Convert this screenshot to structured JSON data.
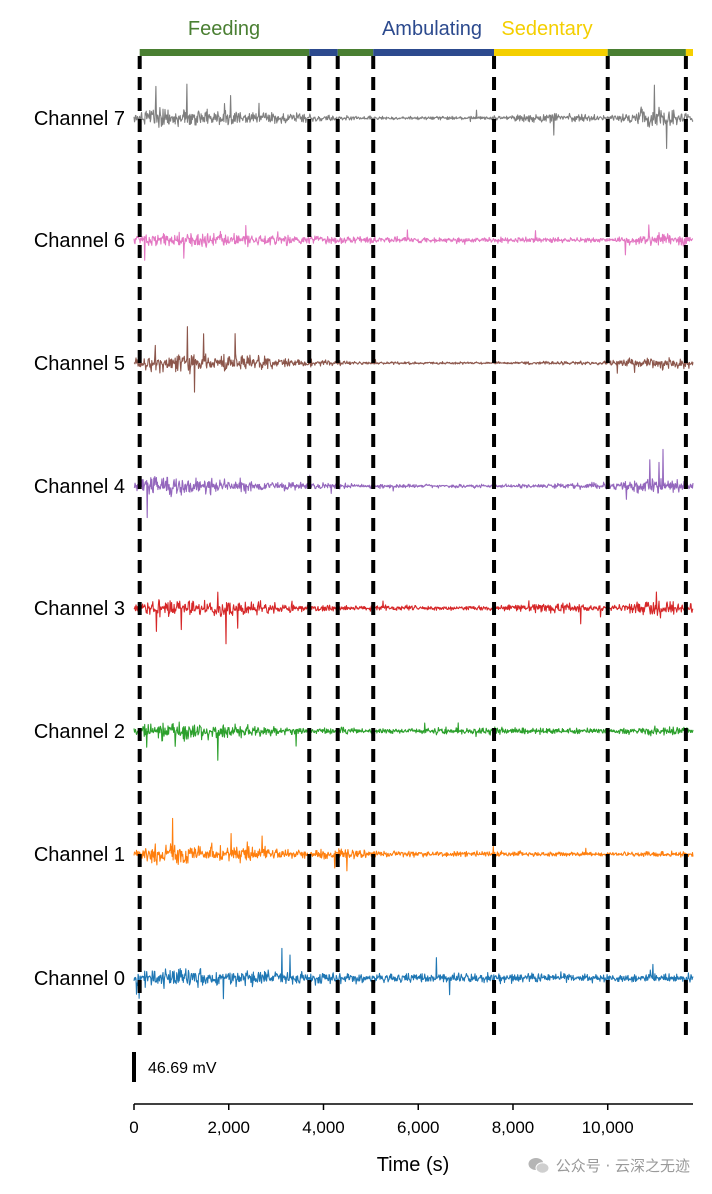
{
  "chart_data": {
    "type": "line",
    "xlabel": "Time (s)",
    "ylabel": "",
    "xlim": [
      0,
      11800
    ],
    "xticks": [
      0,
      2000,
      4000,
      6000,
      8000,
      10000
    ],
    "xtick_labels": [
      "0",
      "2,000",
      "4,000",
      "6,000",
      "8,000",
      "10,000"
    ],
    "scale_bar_label": "46.69 mV",
    "grid": false,
    "phase_labels": [
      {
        "label": "Feeding",
        "color": "#4a7f32"
      },
      {
        "label": "Ambulating",
        "color": "#2c4a8e"
      },
      {
        "label": "Sedentary",
        "color": "#f4cf00"
      }
    ],
    "phase_segments": [
      {
        "phase": "Feeding",
        "start": 120,
        "end": 3700
      },
      {
        "phase": "Ambulating",
        "start": 3700,
        "end": 4300
      },
      {
        "phase": "Feeding",
        "start": 4300,
        "end": 5050
      },
      {
        "phase": "Ambulating",
        "start": 5050,
        "end": 7600
      },
      {
        "phase": "Sedentary",
        "start": 7600,
        "end": 10000
      },
      {
        "phase": "Feeding",
        "start": 10000,
        "end": 11650
      },
      {
        "phase": "Sedentary",
        "start": 11650,
        "end": 11800
      }
    ],
    "boundaries": [
      120,
      3700,
      4300,
      5050,
      7600,
      10000,
      11650
    ],
    "series": [
      {
        "name": "Channel 7",
        "color": "#7f7f7f",
        "seed": 7,
        "activity": [
          [
            0,
            0.35
          ],
          [
            500,
            0.95
          ],
          [
            2000,
            0.7
          ],
          [
            3700,
            0.35
          ],
          [
            5050,
            0.15
          ],
          [
            7600,
            0.2
          ],
          [
            8800,
            0.45
          ],
          [
            10000,
            0.2
          ],
          [
            11000,
            0.95
          ],
          [
            11800,
            0.4
          ]
        ]
      },
      {
        "name": "Channel 6",
        "color": "#e377c2",
        "seed": 6,
        "activity": [
          [
            0,
            0.35
          ],
          [
            500,
            0.8
          ],
          [
            2000,
            0.6
          ],
          [
            3700,
            0.4
          ],
          [
            5050,
            0.3
          ],
          [
            7600,
            0.25
          ],
          [
            10000,
            0.2
          ],
          [
            11000,
            0.6
          ],
          [
            11800,
            0.4
          ]
        ]
      },
      {
        "name": "Channel 5",
        "color": "#8c564b",
        "seed": 5,
        "activity": [
          [
            0,
            0.4
          ],
          [
            500,
            0.95
          ],
          [
            2000,
            0.75
          ],
          [
            3700,
            0.35
          ],
          [
            5050,
            0.12
          ],
          [
            7600,
            0.1
          ],
          [
            10000,
            0.2
          ],
          [
            11000,
            0.6
          ],
          [
            11800,
            0.4
          ]
        ]
      },
      {
        "name": "Channel 4",
        "color": "#9467bd",
        "seed": 4,
        "activity": [
          [
            0,
            0.4
          ],
          [
            500,
            1.0
          ],
          [
            2000,
            0.6
          ],
          [
            3700,
            0.3
          ],
          [
            5050,
            0.2
          ],
          [
            7600,
            0.15
          ],
          [
            10000,
            0.3
          ],
          [
            11000,
            0.85
          ],
          [
            11800,
            0.4
          ]
        ]
      },
      {
        "name": "Channel 3",
        "color": "#d62728",
        "seed": 3,
        "activity": [
          [
            0,
            0.35
          ],
          [
            500,
            0.8
          ],
          [
            2000,
            0.8
          ],
          [
            3700,
            0.35
          ],
          [
            5050,
            0.25
          ],
          [
            7600,
            0.2
          ],
          [
            8800,
            0.55
          ],
          [
            10000,
            0.25
          ],
          [
            11000,
            0.8
          ],
          [
            11800,
            0.5
          ]
        ]
      },
      {
        "name": "Channel 2",
        "color": "#2ca02c",
        "seed": 2,
        "activity": [
          [
            0,
            0.3
          ],
          [
            500,
            0.85
          ],
          [
            2000,
            0.65
          ],
          [
            3700,
            0.25
          ],
          [
            4300,
            0.35
          ],
          [
            5050,
            0.2
          ],
          [
            7600,
            0.35
          ],
          [
            10000,
            0.2
          ],
          [
            11000,
            0.45
          ],
          [
            11800,
            0.3
          ]
        ]
      },
      {
        "name": "Channel 1",
        "color": "#ff7f0e",
        "seed": 1,
        "activity": [
          [
            0,
            0.5
          ],
          [
            500,
            1.0
          ],
          [
            2000,
            0.7
          ],
          [
            3700,
            0.35
          ],
          [
            4300,
            0.6
          ],
          [
            5050,
            0.3
          ],
          [
            7600,
            0.25
          ],
          [
            10000,
            0.2
          ],
          [
            11800,
            0.3
          ]
        ]
      },
      {
        "name": "Channel 0",
        "color": "#1f77b4",
        "seed": 0,
        "activity": [
          [
            0,
            0.6
          ],
          [
            500,
            1.0
          ],
          [
            2000,
            0.8
          ],
          [
            3700,
            0.6
          ],
          [
            5050,
            0.4
          ],
          [
            7600,
            0.45
          ],
          [
            10000,
            0.35
          ],
          [
            11800,
            0.4
          ]
        ]
      }
    ]
  },
  "watermark": {
    "text": "公众号 · 云深之无迹",
    "icon": "wechat-icon"
  }
}
